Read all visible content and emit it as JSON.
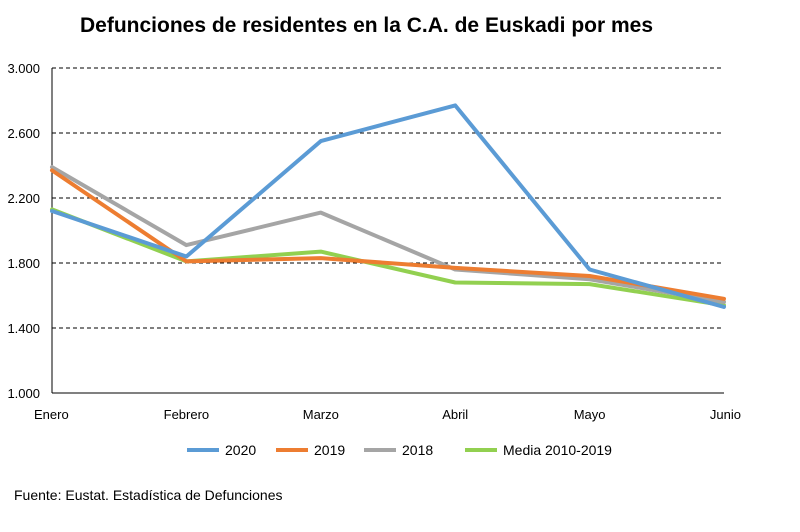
{
  "chart_data": {
    "type": "line",
    "title": "Defunciones de residentes en la C.A. de Euskadi por mes",
    "categories": [
      "Enero",
      "Febrero",
      "Marzo",
      "Abril",
      "Mayo",
      "Junio"
    ],
    "ylim": [
      1000,
      3000
    ],
    "yticks": [
      1000,
      1400,
      1800,
      2200,
      2600,
      3000
    ],
    "ytick_labels": [
      "1.000",
      "1.400",
      "1.800",
      "2.200",
      "2.600",
      "3.000"
    ],
    "grid": "horizontal dashed",
    "legend_position": "bottom",
    "series": [
      {
        "name": "2020",
        "color": "#5b9bd5",
        "values": [
          2120,
          1840,
          2550,
          2770,
          1760,
          1530
        ]
      },
      {
        "name": "2019",
        "color": "#ed7d31",
        "values": [
          2370,
          1810,
          1830,
          1770,
          1720,
          1580
        ]
      },
      {
        "name": "2018",
        "color": "#a5a5a5",
        "values": [
          2390,
          1910,
          2110,
          1760,
          1700,
          1560
        ]
      },
      {
        "name": "Media 2010-2019",
        "color": "#92d050",
        "values": [
          2130,
          1810,
          1870,
          1680,
          1670,
          1540
        ]
      }
    ]
  },
  "footer": {
    "source": "Fuente: Eustat. Estadística de Defunciones"
  }
}
